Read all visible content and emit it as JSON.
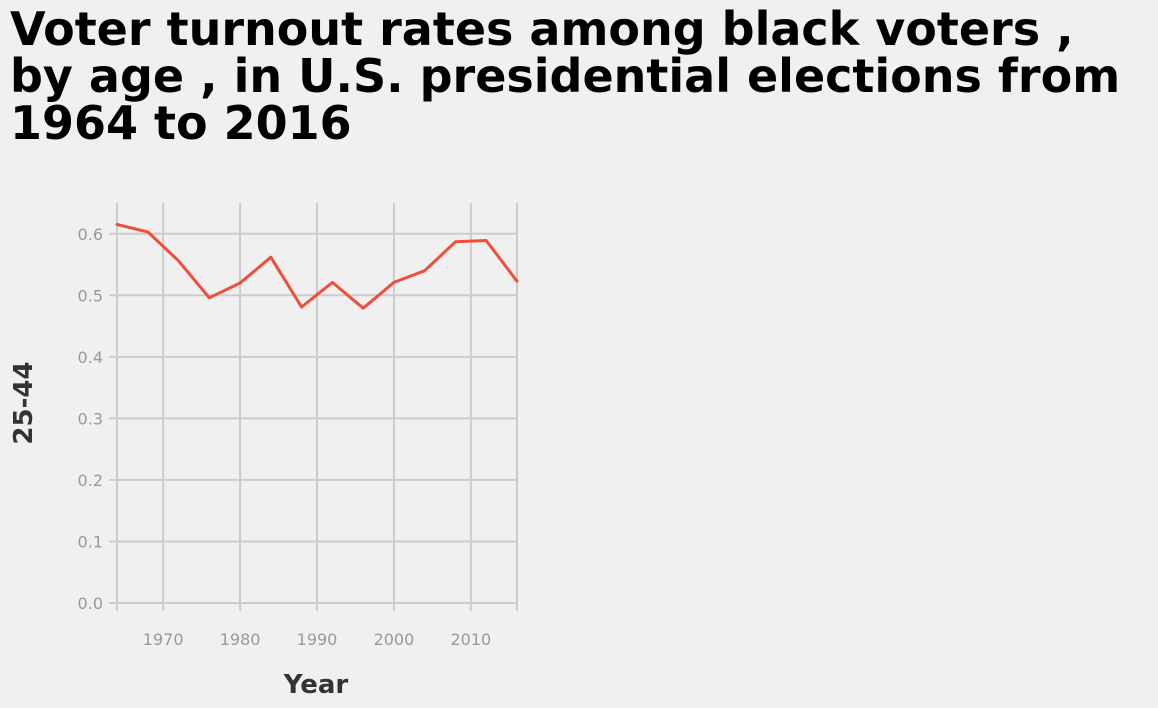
{
  "chart_data": {
    "type": "line",
    "title": "Voter turnout rates among black voters , by age , in U.S. presidential elections from 1964 to 2016",
    "xlabel": "Year",
    "ylabel": "25-44",
    "xlim": [
      1964,
      2016
    ],
    "ylim": [
      0,
      0.65
    ],
    "x_ticks": [
      1970,
      1980,
      1990,
      2000,
      2010
    ],
    "y_ticks": [
      0.0,
      0.1,
      0.2,
      0.3,
      0.4,
      0.5,
      0.6
    ],
    "y_tick_labels": [
      "0.0",
      "0.1",
      "0.2",
      "0.3",
      "0.4",
      "0.5",
      "0.6"
    ],
    "grid": true,
    "line_color": "#f04e3a",
    "series": [
      {
        "x": [
          1964,
          1968,
          1972,
          1976,
          1980,
          1984,
          1988,
          1992,
          1996,
          2000,
          2004,
          2008,
          2012,
          2016
        ],
        "values": [
          0.615,
          0.603,
          0.556,
          0.496,
          0.52,
          0.562,
          0.481,
          0.521,
          0.479,
          0.521,
          0.54,
          0.587,
          0.589,
          0.523
        ]
      }
    ]
  }
}
